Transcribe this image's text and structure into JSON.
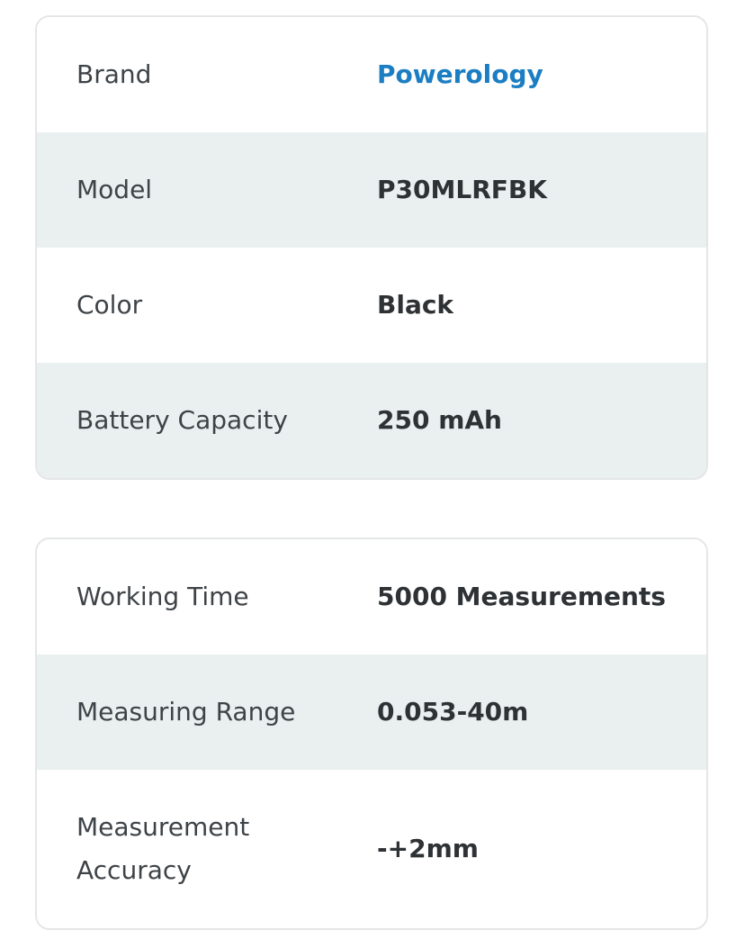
{
  "colors": {
    "page_background": "#ffffff",
    "alt_row_background": "#eaeff0",
    "card_border": "#e4e6e7",
    "label_text": "#3e4347",
    "value_text": "#2e3235",
    "brand_link": "#1b7ec3"
  },
  "spec_tables": [
    {
      "rows": [
        {
          "label": "Brand",
          "value": "Powerology"
        },
        {
          "label": "Model",
          "value": "P30MLRFBK"
        },
        {
          "label": "Color",
          "value": "Black"
        },
        {
          "label": "Battery Capacity",
          "value": "250 mAh"
        }
      ]
    },
    {
      "rows": [
        {
          "label": "Working Time",
          "value": "5000 Measurements"
        },
        {
          "label": "Measuring Range",
          "value": "0.053-40m"
        },
        {
          "label": "Measurement Accuracy",
          "value": "-+2mm"
        }
      ]
    }
  ]
}
